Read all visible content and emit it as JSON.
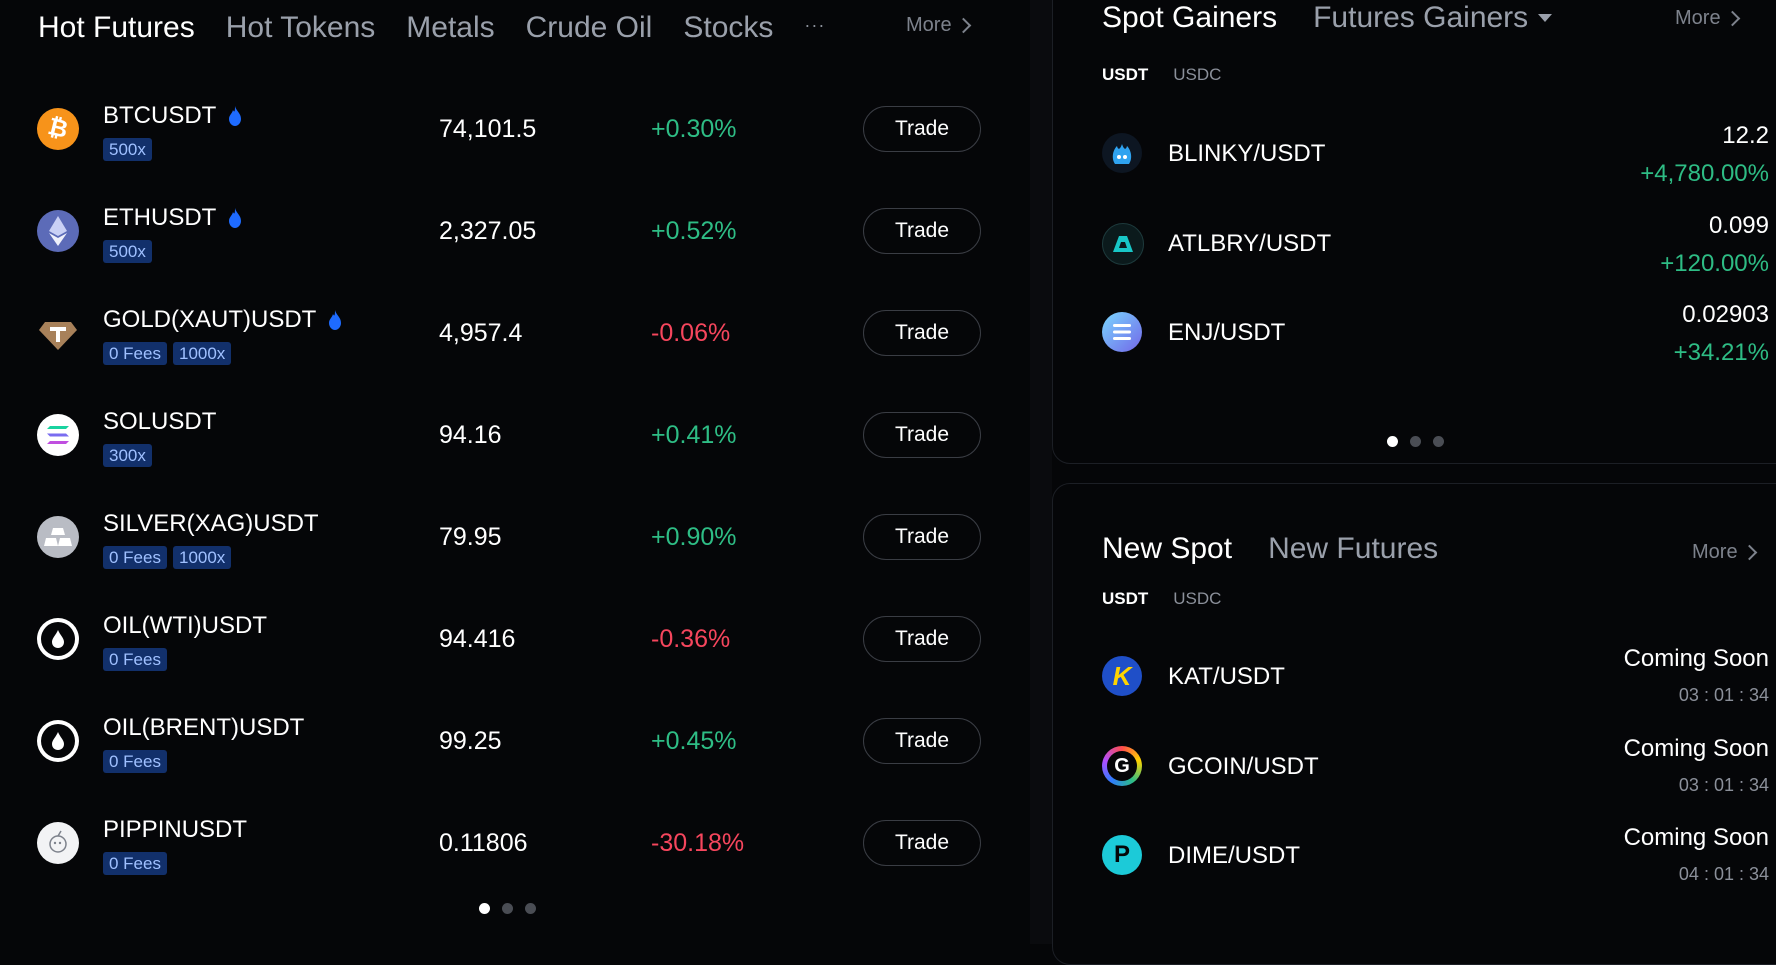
{
  "left": {
    "tabs": [
      "Hot Futures",
      "Hot Tokens",
      "Metals",
      "Crude Oil",
      "Stocks"
    ],
    "tabs_overflow": "···",
    "more_label": "More",
    "rows": [
      {
        "symbol": "BTCUSDT",
        "hot": true,
        "tags": [
          "500x"
        ],
        "price": "74,101.5",
        "change": "+0.30%",
        "dir": "up",
        "trade": "Trade",
        "icon": "btc-icon"
      },
      {
        "symbol": "ETHUSDT",
        "hot": true,
        "tags": [
          "500x"
        ],
        "price": "2,327.05",
        "change": "+0.52%",
        "dir": "up",
        "trade": "Trade",
        "icon": "eth-icon"
      },
      {
        "symbol": "GOLD(XAUT)USDT",
        "hot": true,
        "tags": [
          "0 Fees",
          "1000x"
        ],
        "price": "4,957.4",
        "change": "-0.06%",
        "dir": "down",
        "trade": "Trade",
        "icon": "xaut-icon"
      },
      {
        "symbol": "SOLUSDT",
        "hot": false,
        "tags": [
          "300x"
        ],
        "price": "94.16",
        "change": "+0.41%",
        "dir": "up",
        "trade": "Trade",
        "icon": "sol-icon"
      },
      {
        "symbol": "SILVER(XAG)USDT",
        "hot": false,
        "tags": [
          "0 Fees",
          "1000x"
        ],
        "price": "79.95",
        "change": "+0.90%",
        "dir": "up",
        "trade": "Trade",
        "icon": "silver-icon"
      },
      {
        "symbol": "OIL(WTI)USDT",
        "hot": false,
        "tags": [
          "0 Fees"
        ],
        "price": "94.416",
        "change": "-0.36%",
        "dir": "down",
        "trade": "Trade",
        "icon": "oil-drop-icon"
      },
      {
        "symbol": "OIL(BRENT)USDT",
        "hot": false,
        "tags": [
          "0 Fees"
        ],
        "price": "99.25",
        "change": "+0.45%",
        "dir": "up",
        "trade": "Trade",
        "icon": "oil-drop-icon"
      },
      {
        "symbol": "PIPPINUSDT",
        "hot": false,
        "tags": [
          "0 Fees"
        ],
        "price": "0.11806",
        "change": "-30.18%",
        "dir": "down",
        "trade": "Trade",
        "icon": "pippin-icon"
      }
    ],
    "pager_active": 0,
    "pager_count": 3
  },
  "gainers": {
    "tabs": [
      "Spot Gainers",
      "Futures Gainers"
    ],
    "more_label": "More",
    "subtabs": [
      "USDT",
      "USDC"
    ],
    "rows": [
      {
        "pair": "BLINKY/USDT",
        "price": "12.2",
        "change": "+4,780.00%",
        "icon": "blinky-icon"
      },
      {
        "pair": "ATLBRY/USDT",
        "price": "0.099",
        "change": "+120.00%",
        "icon": "atlbry-icon"
      },
      {
        "pair": "ENJ/USDT",
        "price": "0.02903",
        "change": "+34.21%",
        "icon": "enj-icon"
      }
    ],
    "pager_active": 0,
    "pager_count": 3
  },
  "new_listings": {
    "tabs": [
      "New Spot",
      "New Futures"
    ],
    "more_label": "More",
    "subtabs": [
      "USDT",
      "USDC"
    ],
    "rows": [
      {
        "pair": "KAT/USDT",
        "status": "Coming Soon",
        "countdown": "03 : 01 : 34",
        "icon": "kat-icon"
      },
      {
        "pair": "GCOIN/USDT",
        "status": "Coming Soon",
        "countdown": "03 : 01 : 34",
        "icon": "gcoin-icon"
      },
      {
        "pair": "DIME/USDT",
        "status": "Coming Soon",
        "countdown": "04 : 01 : 34",
        "icon": "dime-icon"
      }
    ]
  },
  "colors": {
    "up": "#2ebd85",
    "down": "#f6465d",
    "tag_bg": "#12306b",
    "bg": "#050608"
  }
}
